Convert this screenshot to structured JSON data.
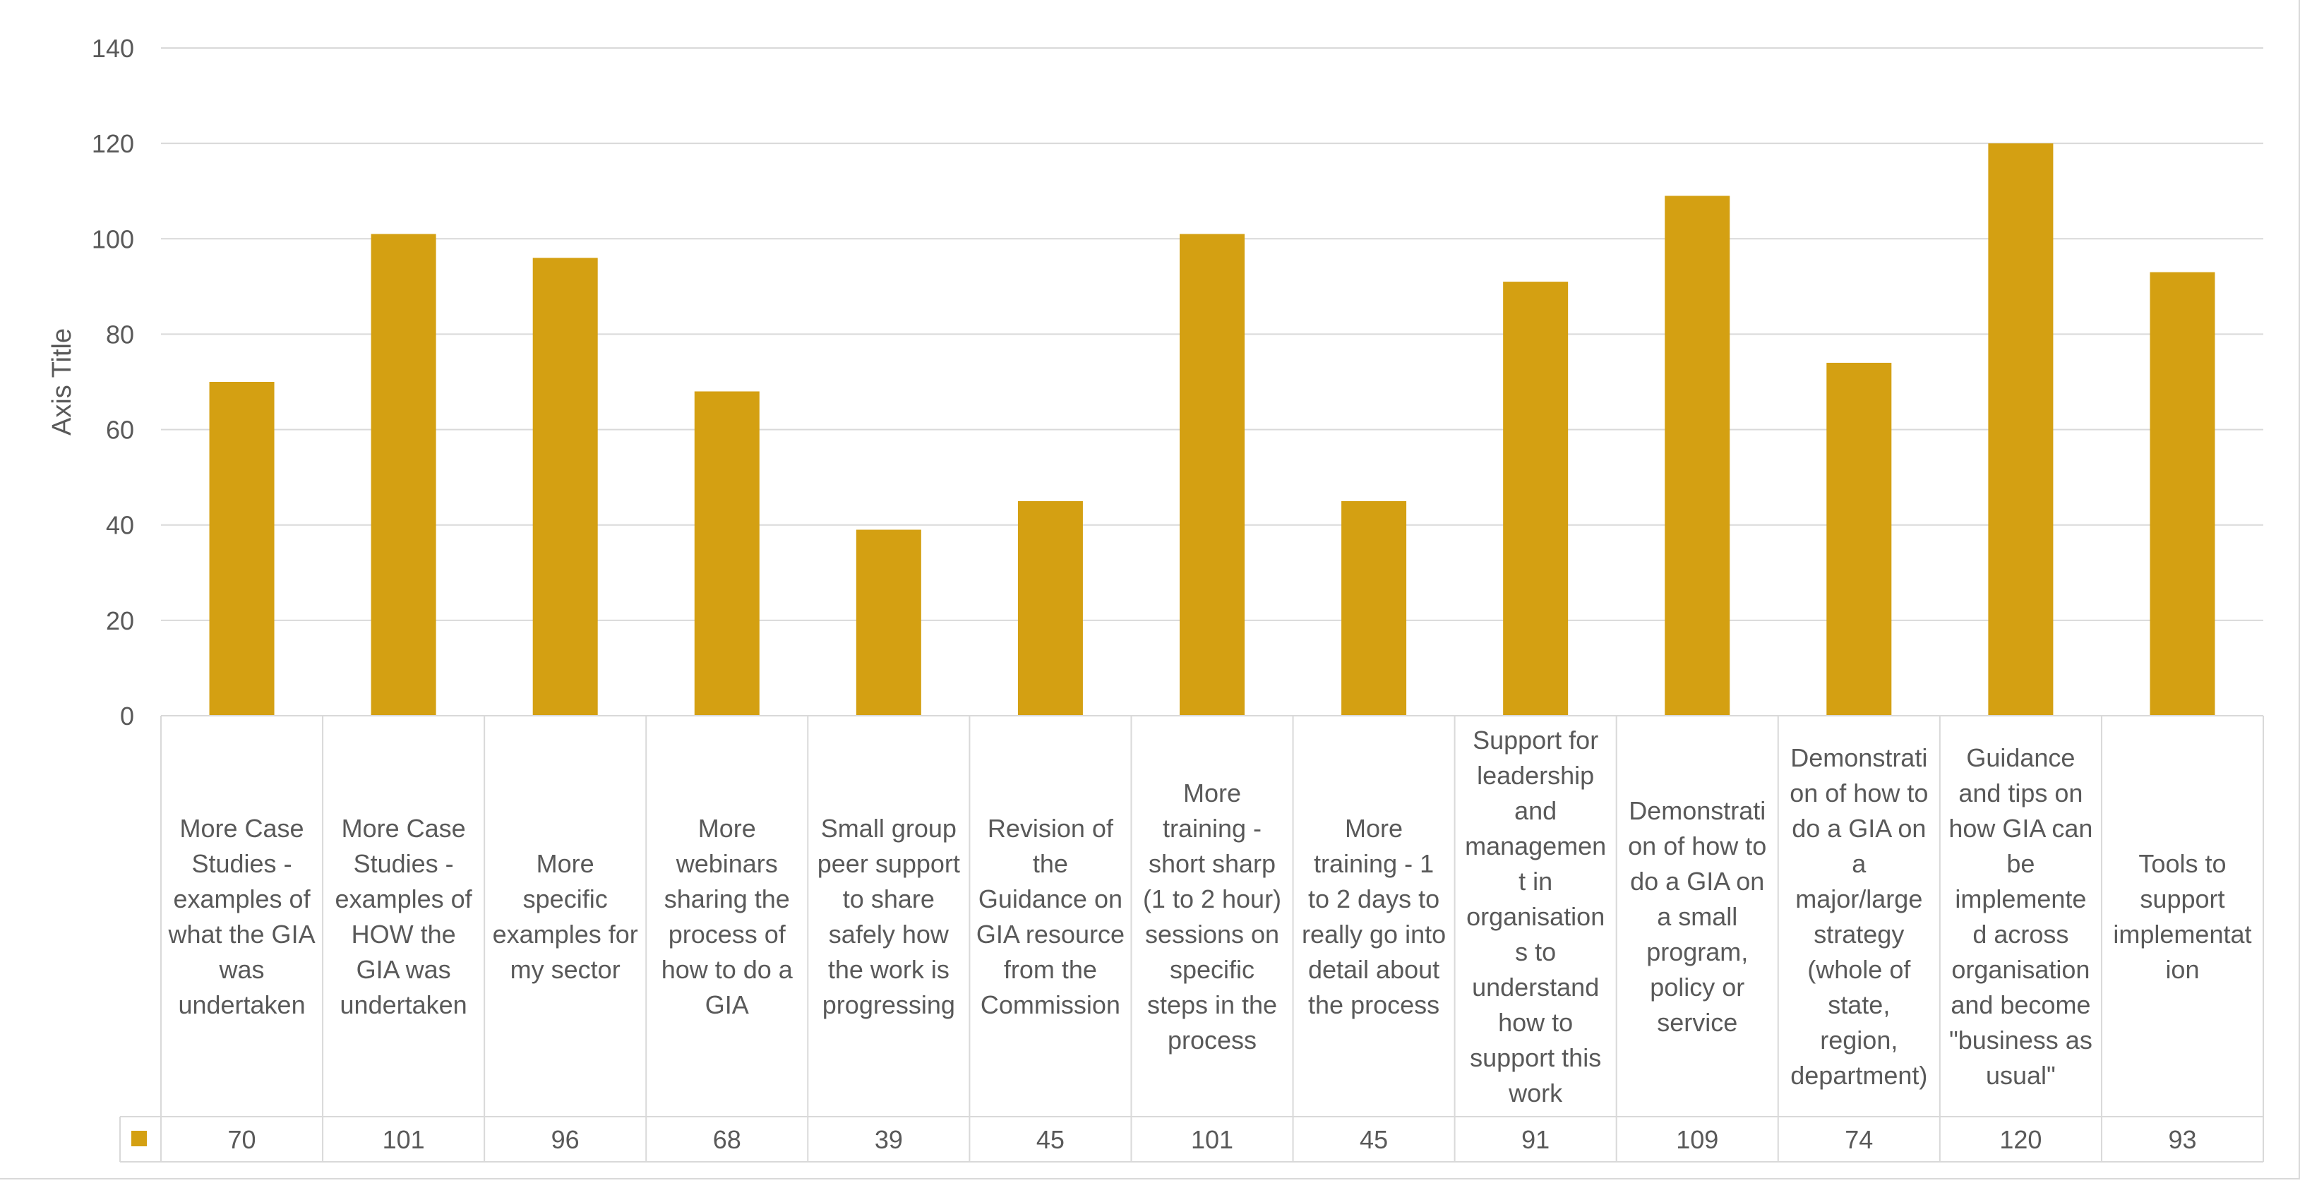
{
  "chart_data": {
    "type": "bar",
    "ylabel": "Axis Title",
    "ylim": [
      0,
      140
    ],
    "yticks": [
      0,
      20,
      40,
      60,
      80,
      100,
      120,
      140
    ],
    "grid": true,
    "legend": "data-table",
    "bar_color": "#D4A012",
    "categories": [
      "More Case Studies - examples of what the GIA was undertaken",
      "More Case Studies - examples of HOW the GIA was undertaken",
      "More specific examples for my sector",
      "More webinars sharing the process of how to do a GIA",
      "Small group peer support to share safely how the work is progressing",
      "Revision of the Guidance on GIA resource from the Commission",
      "More training - short sharp (1 to 2 hour) sessions on specific steps in the process",
      "More training - 1 to 2 days to really go into detail about the process",
      "Support for leadership and management in organisations to understand how to support this work",
      "Demonstration of how to do a GIA on a small program, policy or service",
      "Demonstration of how to do a GIA on a major/large strategy (whole of state, region, department)",
      "Guidance and tips on how GIA can be implemented across organisation and become \"business as usual\"",
      "Tools to support implementation"
    ],
    "category_lines": [
      [
        "More Case",
        "Studies -",
        "examples of",
        "what the GIA",
        "was",
        "undertaken"
      ],
      [
        "More Case",
        "Studies -",
        "examples of",
        "HOW the",
        "GIA was",
        "undertaken"
      ],
      [
        "More",
        "specific",
        "examples for",
        "my sector"
      ],
      [
        "More",
        "webinars",
        "sharing the",
        "process of",
        "how to do a",
        "GIA"
      ],
      [
        "Small group",
        "peer support",
        "to share",
        "safely how",
        "the work is",
        "progressing"
      ],
      [
        "Revision of",
        "the",
        "Guidance on",
        "GIA resource",
        "from the",
        "Commission"
      ],
      [
        "More",
        "training -",
        "short sharp",
        "(1 to 2 hour)",
        "sessions on",
        "specific",
        "steps in the",
        "process"
      ],
      [
        "More",
        "training - 1",
        "to 2 days to",
        "really go into",
        "detail about",
        "the process"
      ],
      [
        "Support for",
        "leadership",
        "and",
        "managemen",
        "t in",
        "organisation",
        "s to",
        "understand",
        "how to",
        "support this",
        "work"
      ],
      [
        "Demonstrati",
        "on of how to",
        "do a GIA on",
        "a small",
        "program,",
        "policy or",
        "service"
      ],
      [
        "Demonstrati",
        "on of how to",
        "do a GIA on",
        "a",
        "major/large",
        "strategy",
        "(whole of",
        "state,",
        "region,",
        "department)"
      ],
      [
        "Guidance",
        "and tips on",
        "how GIA can",
        "be",
        "implemente",
        "d across",
        "organisation",
        "and become",
        "\"business as",
        "usual\""
      ],
      [
        "Tools to",
        "support",
        "implementat",
        "ion"
      ]
    ],
    "values": [
      70,
      101,
      96,
      68,
      39,
      45,
      101,
      45,
      91,
      109,
      74,
      120,
      93
    ]
  }
}
